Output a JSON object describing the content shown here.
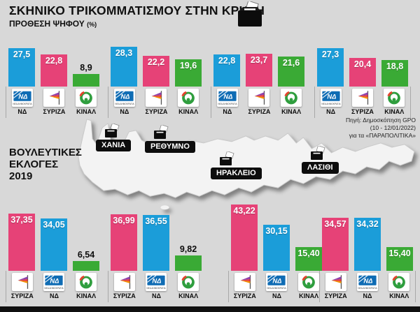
{
  "meta": {
    "title": "ΣΚΗΝΙΚΟ ΤΡΙΚΟΜΜΑΤΙΣΜΟΥ ΣΤΗΝ ΚΡΗΤΗ",
    "subtitle": "ΠΡΟΘΕΣΗ ΨΗΦΟΥ",
    "subtitle_unit": "(%)",
    "elections_line1": "ΒΟΥΛΕΥΤΙΚΕΣ",
    "elections_line2": "ΕΚΛΟΓΕΣ",
    "elections_line3": "2019",
    "source_line1": "Πηγή: Δημοσκόπηση GPO",
    "source_line2": "(10 - 12/01/2022)",
    "source_line3": "για τα «ΠΑΡΑΠΟΛΙΤΙΚΑ»"
  },
  "colors": {
    "nd_blue": "#1b9dd9",
    "syriza_pink": "#e64277",
    "kinal_green": "#3aaa35",
    "background": "#d8d8d8",
    "chip_black": "#0d0d0d"
  },
  "map": {
    "regions": [
      {
        "name": "ΧΑΝΙΑ"
      },
      {
        "name": "ΡΕΘΥΜΝΟ"
      },
      {
        "name": "ΗΡΑΚΛΕΙΟ"
      },
      {
        "name": "ΛΑΣΙΘΙ"
      }
    ]
  },
  "parties": {
    "ΝΔ": {
      "logo": "nd"
    },
    "ΣΥΡΙΖΑ": {
      "logo": "syriza"
    },
    "ΚΙΝΑΛ": {
      "logo": "kinal"
    }
  },
  "chart_data": [
    {
      "id": "poll_2022",
      "type": "bar",
      "title": "ΠΡΟΘΕΣΗ ΨΗΦΟΥ (%)",
      "party_order": [
        "ΝΔ",
        "ΣΥΡΙΖΑ",
        "ΚΙΝΑΛ"
      ],
      "party_colors": [
        "#1b9dd9",
        "#e64277",
        "#3aaa35"
      ],
      "ylim": [
        0,
        45
      ],
      "groups": [
        {
          "region": "ΧΑΝΙΑ",
          "values": [
            27.5,
            22.8,
            8.9
          ],
          "labels": [
            "27,5",
            "22,8",
            "8,9"
          ]
        },
        {
          "region": "ΡΕΘΥΜΝΟ",
          "values": [
            28.3,
            22.2,
            19.6
          ],
          "labels": [
            "28,3",
            "22,2",
            "19,6"
          ]
        },
        {
          "region": "ΗΡΑΚΛΕΙΟ",
          "values": [
            22.8,
            23.7,
            21.6
          ],
          "labels": [
            "22,8",
            "23,7",
            "21,6"
          ]
        },
        {
          "region": "ΛΑΣΙΘΙ",
          "values": [
            27.3,
            20.4,
            18.8
          ],
          "labels": [
            "27,3",
            "20,4",
            "18,8"
          ]
        }
      ]
    },
    {
      "id": "elections_2019",
      "type": "bar",
      "title": "ΒΟΥΛΕΥΤΙΚΕΣ ΕΚΛΟΓΕΣ 2019 (%)",
      "party_order": [
        "ΣΥΡΙΖΑ",
        "ΝΔ",
        "ΚΙΝΑΛ"
      ],
      "party_colors": [
        "#e64277",
        "#1b9dd9",
        "#3aaa35"
      ],
      "ylim": [
        0,
        45
      ],
      "groups": [
        {
          "region": "ΧΑΝΙΑ",
          "values": [
            37.35,
            34.05,
            6.54
          ],
          "labels": [
            "37,35",
            "34,05",
            "6,54"
          ]
        },
        {
          "region": "ΡΕΘΥΜΝΟ",
          "values": [
            36.99,
            36.55,
            9.82
          ],
          "labels": [
            "36,99",
            "36,55",
            "9,82"
          ]
        },
        {
          "region": "ΗΡΑΚΛΕΙΟ",
          "values": [
            43.22,
            30.15,
            15.4
          ],
          "labels": [
            "43,22",
            "30,15",
            "15,40"
          ]
        },
        {
          "region": "ΛΑΣΙΘΙ",
          "values": [
            34.57,
            34.32,
            15.4
          ],
          "labels": [
            "34,57",
            "34,32",
            "15,40"
          ]
        }
      ]
    }
  ]
}
